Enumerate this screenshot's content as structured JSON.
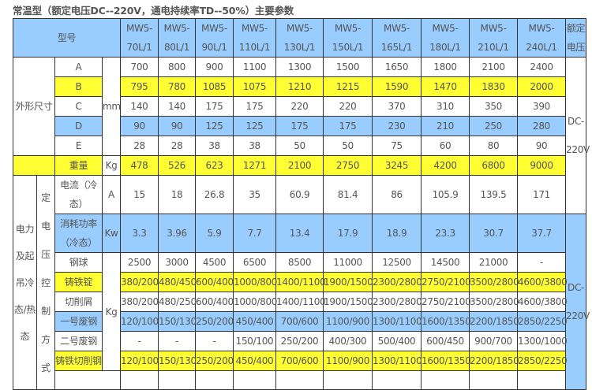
{
  "title": "常温型（额定电压DC--220V，通电持续率TD--50%）主要参数",
  "header": {
    "model_label": "型号",
    "models": [
      "MW5-70L/1",
      "MW5-80L/1",
      "MW5-90L/1",
      "MW5-110L/1",
      "MW5-130L/1",
      "MW5-150L/1",
      "MW5-165L/1",
      "MW5-180L/1",
      "MW5-210L/1",
      "MW5-240L/1"
    ],
    "voltage_label": "额定电压"
  },
  "dimensions": {
    "group_label": "外形尺寸",
    "unit": "mm",
    "rows": [
      {
        "label": "A",
        "values": [
          "700",
          "800",
          "900",
          "1100",
          "1300",
          "1500",
          "1650",
          "1800",
          "2100",
          "2400"
        ]
      },
      {
        "label": "B",
        "values": [
          "795",
          "780",
          "1085",
          "1075",
          "1210",
          "1215",
          "1590",
          "1470",
          "1830",
          "2000"
        ]
      },
      {
        "label": "C",
        "values": [
          "140",
          "140",
          "175",
          "175",
          "220",
          "220",
          "370",
          "310",
          "350",
          "390"
        ]
      },
      {
        "label": "D",
        "values": [
          "90",
          "90",
          "125",
          "125",
          "175",
          "175",
          "230",
          "210",
          "250",
          "280"
        ]
      },
      {
        "label": "E",
        "values": [
          "28",
          "28",
          "38",
          "38",
          "50",
          "50",
          "75",
          "60",
          "80",
          "90"
        ]
      }
    ]
  },
  "weight": {
    "label": "重量",
    "unit": "Kg",
    "values": [
      "478",
      "526",
      "623",
      "1271",
      "2100",
      "2750",
      "3245",
      "4200",
      "6800",
      "9000"
    ]
  },
  "electric": {
    "group_label": "电力及起吊冷态/热态",
    "sub_label": "定电压控制方式",
    "current": {
      "label": "电流（冷态）",
      "unit": "A",
      "values": [
        "15",
        "18",
        "26.8",
        "35",
        "60.9",
        "81.4",
        "86",
        "105.9",
        "139.5",
        "171"
      ]
    },
    "power": {
      "label": "消耗功率（冷态）",
      "unit": "Kw",
      "values": [
        "3.3",
        "3.96",
        "5.9",
        "7.7",
        "13.4",
        "17.9",
        "18.9",
        "23.3",
        "30.7",
        "37.7"
      ]
    },
    "lift_unit": "Kg",
    "lift_rows": [
      {
        "label": "钢球",
        "values": [
          "2500",
          "3000",
          "4500",
          "6500",
          "8500",
          "11000",
          "12500",
          "14500",
          "21000",
          "-"
        ]
      },
      {
        "label": "铸铁锭",
        "values": [
          "380/200",
          "480/450",
          "600/400",
          "1000/800",
          "1400/1100",
          "1900/1500",
          "2300/2800",
          "2750/2100",
          "3500/2800",
          "4600/3800"
        ]
      },
      {
        "label": "切削屑",
        "values": [
          "380/200",
          "480/250",
          "600/400",
          "1000/800",
          "1400/1100",
          "1900/1500",
          "2300/2800",
          "2750/2100",
          "3500/2800",
          "4600/3800"
        ]
      },
      {
        "label": "一号废钢",
        "values": [
          "120/100",
          "150/130",
          "250/200",
          "450/400",
          "700/600",
          "1100/900",
          "1300/1100",
          "1600/1350",
          "2200/1850",
          "2850/2250"
        ]
      },
      {
        "label": "二号废钢",
        "values": [
          "-",
          "-",
          "-",
          "150/100",
          "250/200",
          "400/300",
          "500/400",
          "600/450",
          "900/700",
          "1300/1000"
        ]
      },
      {
        "label": "铸铁切削钢",
        "values": [
          "120/100",
          "150/130",
          "250/200",
          "450/400",
          "700/600",
          "1100/900",
          "1300/1100",
          "1600/1350",
          "2200/1850",
          "2850/2250"
        ]
      }
    ]
  },
  "voltage_value": "DC-220V",
  "colors": {
    "blue": "#99ccff",
    "yellow": "#ffff33",
    "border": "#333333",
    "text": "#555555"
  }
}
